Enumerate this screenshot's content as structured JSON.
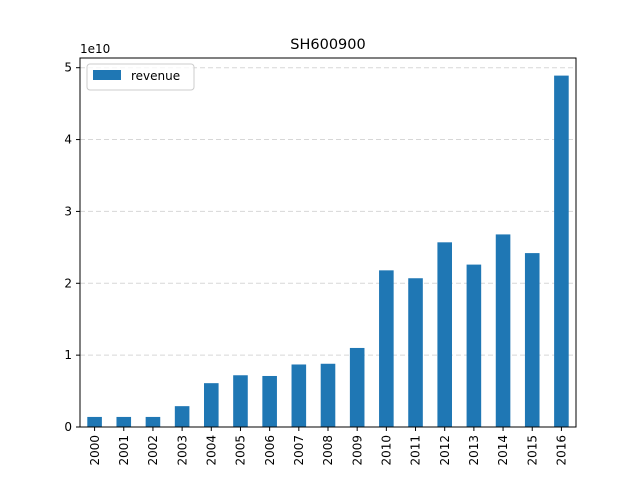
{
  "chart_data": {
    "type": "bar",
    "title": "SH600900",
    "offset_label": "1e10",
    "ylabel": "",
    "categories": [
      "2000",
      "2001",
      "2002",
      "2003",
      "2004",
      "2005",
      "2006",
      "2007",
      "2008",
      "2009",
      "2010",
      "2011",
      "2012",
      "2013",
      "2014",
      "2015",
      "2016"
    ],
    "series": [
      {
        "name": "revenue",
        "color": "#1f77b4",
        "values": [
          1400000000.0,
          1400000000.0,
          1400000000.0,
          2900000000.0,
          6100000000.0,
          7200000000.0,
          7100000000.0,
          8700000000.0,
          8800000000.0,
          11000000000.0,
          21800000000.0,
          20700000000.0,
          25700000000.0,
          22600000000.0,
          26800000000.0,
          24200000000.0,
          48900000000.0
        ]
      }
    ],
    "yticks": [
      0,
      10000000000.0,
      20000000000.0,
      30000000000.0,
      40000000000.0,
      50000000000.0
    ],
    "ytick_labels": [
      "0",
      "1",
      "2",
      "3",
      "4",
      "5"
    ],
    "ylim": [
      0,
      51350000000.0
    ],
    "grid": "horizontal dashed",
    "legend_position": "top-left"
  }
}
